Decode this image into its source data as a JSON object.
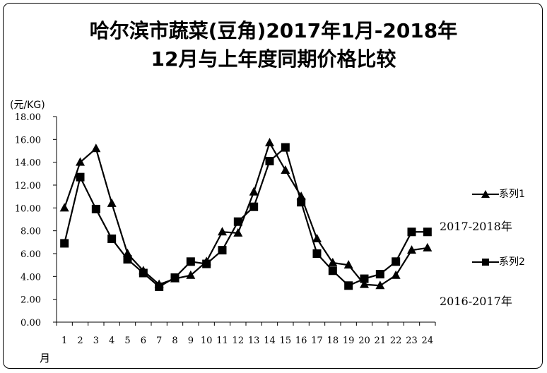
{
  "chart_data": {
    "type": "line",
    "title": "哈尔滨市蔬菜(豆角)2017年1月-2018年",
    "subtitle": "12月与上年度同期价格比较",
    "ylabel": "(元/KG)",
    "xlabel": "月",
    "ylim": [
      0,
      18
    ],
    "yticks": [
      "0.00",
      "2.00",
      "4.00",
      "6.00",
      "8.00",
      "10.00",
      "12.00",
      "14.00",
      "16.00",
      "18.00"
    ],
    "categories": [
      "1",
      "2",
      "3",
      "4",
      "5",
      "6",
      "7",
      "8",
      "9",
      "10",
      "11",
      "12",
      "13",
      "14",
      "15",
      "16",
      "17",
      "18",
      "19",
      "20",
      "21",
      "22",
      "23",
      "24"
    ],
    "grid": false,
    "legend_position": "right",
    "series": [
      {
        "name": "系列1",
        "marker": "triangle",
        "values": [
          10.0,
          14.0,
          15.2,
          10.4,
          6.0,
          4.5,
          3.3,
          3.8,
          4.1,
          5.3,
          7.9,
          7.8,
          11.4,
          15.7,
          13.3,
          11.0,
          7.3,
          5.2,
          5.0,
          3.3,
          3.2,
          4.1,
          6.3,
          6.5
        ]
      },
      {
        "name": "系列2",
        "marker": "square",
        "values": [
          6.9,
          12.7,
          9.9,
          7.3,
          5.5,
          4.3,
          3.1,
          3.9,
          5.3,
          5.1,
          6.3,
          8.8,
          10.1,
          14.1,
          15.3,
          10.5,
          6.0,
          4.5,
          3.2,
          3.8,
          4.2,
          5.3,
          7.9,
          7.9
        ]
      }
    ],
    "annotations": [
      "2017-2018年",
      "2016-2017年"
    ]
  }
}
